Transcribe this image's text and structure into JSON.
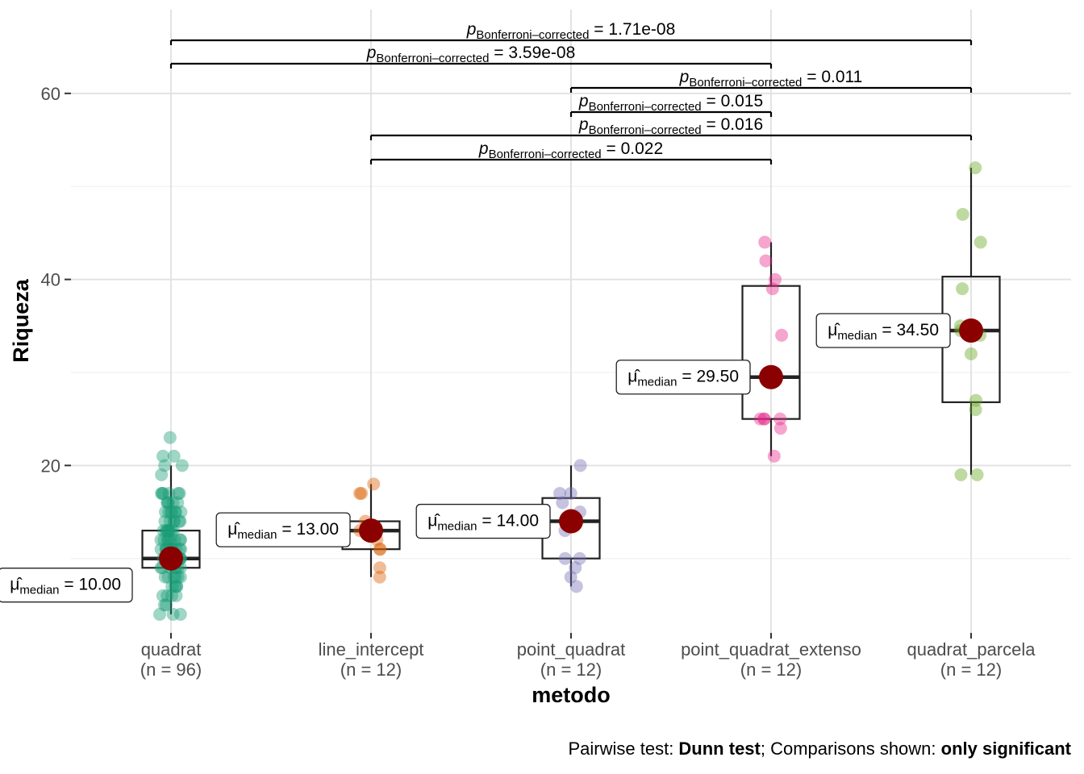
{
  "chart_data": {
    "type": "box",
    "xlabel": "metodo",
    "ylabel": "Riqueza",
    "ylim": [
      2,
      69
    ],
    "yticks": [
      20,
      40,
      60
    ],
    "grid": true,
    "categories": [
      {
        "name": "quadrat",
        "n_label": "(n = 96)",
        "color": "#1b9e77",
        "box": {
          "min": 4,
          "q1": 9,
          "median": 10,
          "q3": 13,
          "max": 20
        },
        "median_label": "10.00",
        "points": [
          4,
          4,
          5,
          5,
          6,
          6,
          6,
          7,
          7,
          7,
          7,
          8,
          8,
          8,
          8,
          8,
          9,
          9,
          9,
          9,
          9,
          9,
          9,
          10,
          10,
          10,
          10,
          10,
          10,
          10,
          10,
          10,
          10,
          10,
          10,
          11,
          11,
          11,
          11,
          11,
          11,
          11,
          11,
          11,
          11,
          11,
          12,
          12,
          12,
          12,
          12,
          12,
          12,
          12,
          12,
          13,
          13,
          13,
          13,
          13,
          13,
          13,
          13,
          14,
          14,
          14,
          14,
          14,
          14,
          15,
          15,
          15,
          15,
          15,
          15,
          15,
          16,
          16,
          16,
          16,
          16,
          17,
          17,
          17,
          17,
          17,
          17,
          19,
          20,
          20,
          21,
          21,
          23,
          4,
          6,
          8
        ]
      },
      {
        "name": "line_intercept",
        "n_label": "(n = 12)",
        "color": "#d95f02",
        "box": {
          "min": 8,
          "q1": 11,
          "median": 13,
          "q3": 14,
          "max": 18
        },
        "median_label": "13.00",
        "points": [
          8,
          9,
          11,
          11,
          12,
          13,
          13,
          14,
          17,
          17,
          18,
          13
        ]
      },
      {
        "name": "point_quadrat",
        "n_label": "(n = 12)",
        "color": "#7570b3",
        "box": {
          "min": 7,
          "q1": 10,
          "median": 14,
          "q3": 16.5,
          "max": 20
        },
        "median_label": "14.00",
        "points": [
          7,
          8,
          9,
          10,
          10,
          13,
          14,
          15,
          16,
          17,
          17,
          20
        ]
      },
      {
        "name": "point_quadrat_extenso",
        "n_label": "(n = 12)",
        "color": "#e7298a",
        "box": {
          "min": 21,
          "q1": 25,
          "median": 29.5,
          "q3": 39.3,
          "max": 44
        },
        "median_label": "29.50",
        "points": [
          21,
          24,
          25,
          25,
          25,
          34,
          39,
          40,
          42,
          44,
          25,
          29.5
        ]
      },
      {
        "name": "quadrat_parcela",
        "n_label": "(n = 12)",
        "color": "#66a61e",
        "box": {
          "min": 19,
          "q1": 26.8,
          "median": 34.5,
          "q3": 40.3,
          "max": 52
        },
        "median_label": "34.50",
        "points": [
          19,
          19,
          26,
          27,
          32,
          35,
          39,
          44,
          47,
          52,
          34,
          34.5
        ]
      }
    ],
    "median_marker_color": "#8b0000",
    "median_label_prefix": "μ̂",
    "median_label_sub": "median",
    "comparisons": [
      {
        "from": 0,
        "to": 4,
        "p_sub": "Bonferroni–corrected",
        "p": "= 1.71e-08"
      },
      {
        "from": 0,
        "to": 3,
        "p_sub": "Bonferroni–corrected",
        "p": "= 3.59e-08"
      },
      {
        "from": 2,
        "to": 4,
        "p_sub": "Bonferroni–corrected",
        "p": "= 0.011"
      },
      {
        "from": 2,
        "to": 3,
        "p_sub": "Bonferroni–corrected",
        "p": "= 0.015"
      },
      {
        "from": 1,
        "to": 4,
        "p_sub": "Bonferroni–corrected",
        "p": "= 0.016"
      },
      {
        "from": 1,
        "to": 3,
        "p_sub": "Bonferroni–corrected",
        "p": "= 0.022"
      }
    ],
    "caption": {
      "part1": "Pairwise test: ",
      "part2": "Dunn test",
      "part3": "; Comparisons shown: ",
      "part4": "only significant"
    }
  }
}
